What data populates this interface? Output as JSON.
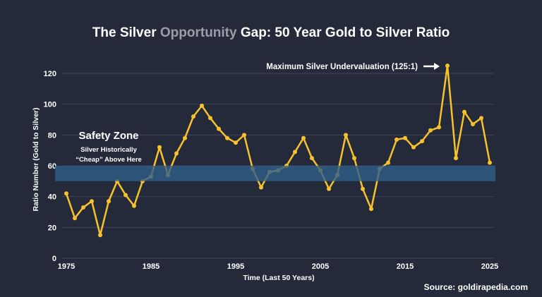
{
  "chart_data": {
    "type": "line",
    "title_parts": [
      "The Silver ",
      "Opportunity",
      " Gap: 50 Year Gold to Silver Ratio"
    ],
    "xlabel": "Time (Last 50 Years)",
    "ylabel": "Ratio Number (Gold to Silver)",
    "xlim": [
      1975,
      2025
    ],
    "ylim": [
      0,
      125
    ],
    "yticks": [
      0,
      20,
      40,
      60,
      80,
      100,
      120
    ],
    "xticks": [
      1975,
      1985,
      1995,
      2005,
      2015,
      2025
    ],
    "grid": true,
    "x": [
      1975,
      1976,
      1977,
      1978,
      1979,
      1980,
      1981,
      1982,
      1983,
      1984,
      1985,
      1986,
      1987,
      1988,
      1989,
      1990,
      1991,
      1992,
      1993,
      1994,
      1995,
      1996,
      1997,
      1998,
      1999,
      2000,
      2001,
      2002,
      2003,
      2004,
      2005,
      2006,
      2007,
      2008,
      2009,
      2010,
      2011,
      2012,
      2013,
      2014,
      2015,
      2016,
      2017,
      2018,
      2019,
      2020,
      2021,
      2022,
      2023,
      2024,
      2025
    ],
    "values": [
      42,
      26,
      33,
      37,
      15,
      37,
      50,
      41,
      34,
      50,
      53,
      72,
      54,
      68,
      78,
      92,
      99,
      91,
      84,
      78,
      75,
      80,
      58,
      46,
      56,
      57,
      60,
      69,
      78,
      65,
      57,
      45,
      54,
      80,
      65,
      45,
      32,
      58,
      62,
      77,
      78,
      72,
      76,
      83,
      85,
      125,
      65,
      95,
      87,
      91,
      62
    ],
    "band": {
      "from": 50,
      "to": 60,
      "title": "Safety Zone",
      "subtitle_lines": [
        "Silver Historically",
        "“Cheap” Above Here"
      ]
    },
    "annotation": "Maximum Silver Undervaluation (125:1)",
    "source": "Source: goldirapedia.com",
    "colors": {
      "line": "#f7c22b",
      "band": "#2e5f88",
      "accent_title": "#9a9ea8",
      "grid": "#3f4558"
    }
  }
}
